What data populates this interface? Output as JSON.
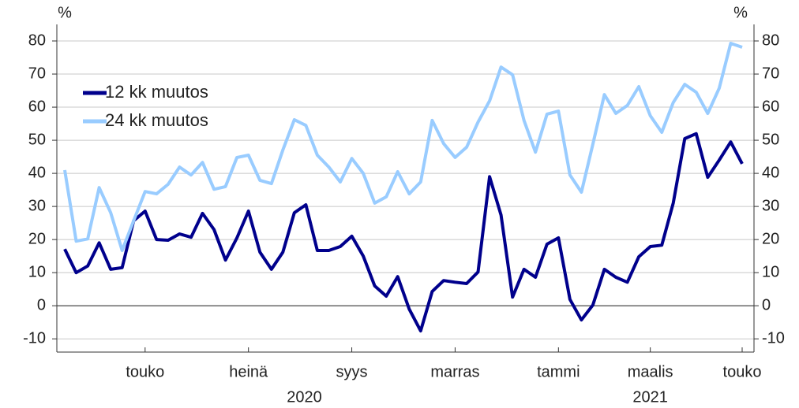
{
  "chart_data": {
    "type": "line",
    "y_unit": "%",
    "y2_unit": "%",
    "categories": [
      null,
      null,
      null,
      null,
      null,
      null,
      null,
      "touko",
      null,
      null,
      null,
      null,
      null,
      null,
      null,
      null,
      "heinä",
      null,
      null,
      null,
      null,
      null,
      null,
      null,
      null,
      "syys",
      null,
      null,
      null,
      null,
      null,
      null,
      null,
      null,
      "marras",
      null,
      null,
      null,
      null,
      null,
      null,
      null,
      null,
      "tammi",
      null,
      null,
      null,
      null,
      null,
      null,
      null,
      "maalis",
      null,
      null,
      null,
      null,
      null,
      null,
      null,
      "touko"
    ],
    "year_labels": [
      "2020",
      "2021"
    ],
    "series": [
      {
        "name": "12 kk muutos",
        "color": "#00008c",
        "values": [
          17.1,
          10,
          12,
          19,
          11,
          11.5,
          25.7,
          28.6,
          20,
          19.8,
          21.7,
          20.7,
          27.9,
          23,
          13.8,
          20.5,
          28.6,
          16.2,
          11,
          16.2,
          28.1,
          30.5,
          16.7,
          16.7,
          17.9,
          21,
          15,
          6,
          2.9,
          8.8,
          -1,
          -7.6,
          4.3,
          7.6,
          7.1,
          6.7,
          10.2,
          39,
          27.4,
          2.6,
          11,
          8.6,
          18.6,
          20.5,
          1.9,
          -4.3,
          0.2,
          11,
          8.6,
          7.1,
          14.8,
          17.9,
          18.3,
          31,
          50.5,
          52,
          38.8,
          44,
          49.5,
          42.9
        ]
      },
      {
        "name": "24 kk muutos",
        "color": "#99ccff",
        "values": [
          41,
          19.5,
          20.2,
          35.7,
          28.1,
          16.7,
          25.7,
          34.5,
          33.8,
          36.7,
          41.9,
          39.5,
          43.3,
          35.2,
          36,
          44.8,
          45.5,
          37.9,
          36.9,
          47.1,
          56.2,
          54.5,
          45.5,
          41.9,
          37.4,
          44.5,
          40,
          31,
          32.9,
          40.5,
          33.8,
          37.4,
          56,
          49,
          44.8,
          47.9,
          55.5,
          61.9,
          72.1,
          69.8,
          56,
          46.4,
          57.9,
          58.8,
          39.5,
          34.3,
          48.8,
          63.8,
          58.1,
          60.5,
          66.2,
          57.4,
          52.4,
          61.4,
          66.9,
          64.5,
          58.1,
          65.7,
          79.3,
          78.1
        ]
      }
    ],
    "ylim": [
      -14,
      85
    ],
    "yticks": [
      -10,
      0,
      10,
      20,
      30,
      40,
      50,
      60,
      70,
      80
    ],
    "y2lim": [
      -14,
      85
    ],
    "y2ticks": [
      -10,
      0,
      10,
      20,
      30,
      40,
      50,
      60,
      70,
      80
    ],
    "grid": true,
    "legend": "upper left"
  }
}
